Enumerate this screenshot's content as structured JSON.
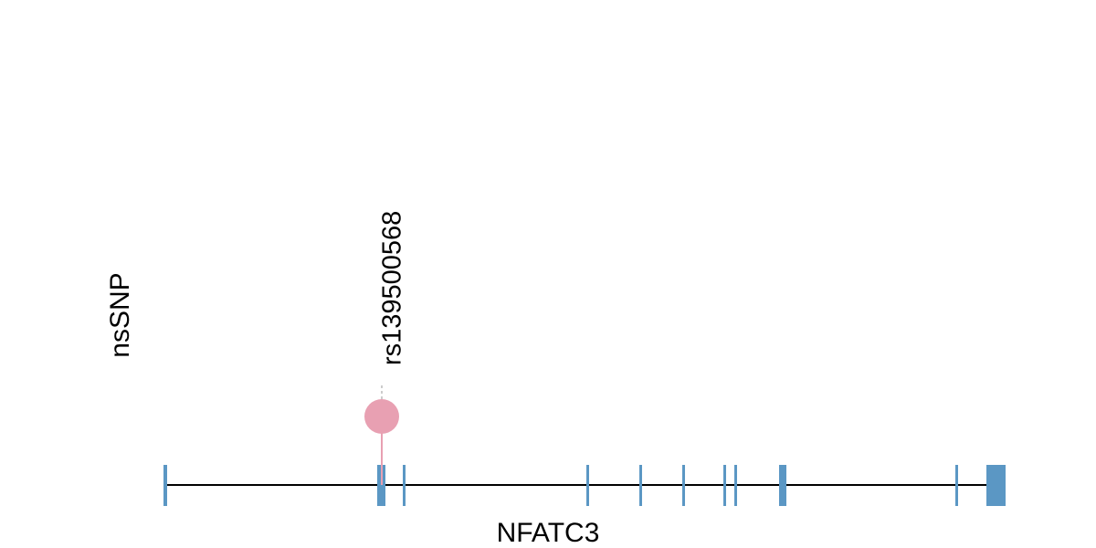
{
  "track_label": "nsSNP",
  "variant": {
    "label": "rs139500568"
  },
  "gene": {
    "label": "NFATC3"
  }
}
